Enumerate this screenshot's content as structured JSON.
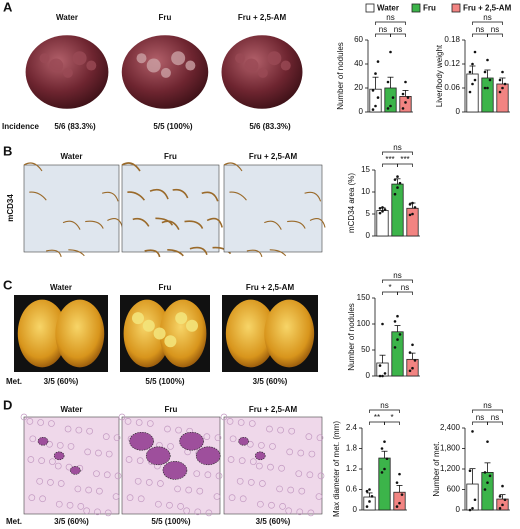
{
  "legend": [
    {
      "name": "Water",
      "color": "#ffffff"
    },
    {
      "name": "Fru",
      "color": "#3cb44a"
    },
    {
      "name": "Fru + 2,5-AM",
      "color": "#f28482"
    }
  ],
  "panels": [
    {
      "letter": "A",
      "labels": [
        "Water",
        "Fru",
        "Fru + 2,5-AM"
      ],
      "row_label": "Incidence",
      "captions": [
        "5/6 (83.3%)",
        "5/5 (100%)",
        "5/6 (83.3%)"
      ]
    },
    {
      "letter": "B",
      "labels": [
        "Water",
        "Fru",
        "Fru + 2,5-AM"
      ],
      "row_label": "mCD34"
    },
    {
      "letter": "C",
      "labels": [
        "Water",
        "Fru",
        "Fru + 2,5-AM"
      ],
      "row_label": "Met.",
      "captions": [
        "3/5 (60%)",
        "5/5 (100%)",
        "3/5 (60%)"
      ]
    },
    {
      "letter": "D",
      "labels": [
        "Water",
        "Fru",
        "Fru + 2,5-AM"
      ],
      "row_label": "Met.",
      "captions": [
        "3/5 (60%)",
        "5/5 (100%)",
        "3/5 (60%)"
      ]
    }
  ],
  "chart_data": [
    {
      "type": "bar",
      "ylabel": "Number of nodules",
      "values": [
        19,
        20,
        13
      ],
      "errors": [
        10,
        9,
        5
      ],
      "points": [
        [
          2,
          5,
          12,
          18,
          32,
          42
        ],
        [
          3,
          5,
          12,
          25,
          50
        ],
        [
          3,
          8,
          12,
          15,
          25
        ]
      ],
      "ylim": [
        0,
        60
      ],
      "yticks": [
        0,
        20,
        40,
        60
      ],
      "brackets": [
        {
          "groups": [
            "Water",
            "Fru"
          ],
          "label": "ns"
        },
        {
          "groups": [
            "Fru",
            "Fru + 2,5-AM"
          ],
          "label": "ns"
        },
        {
          "groups": [
            "Water",
            "Fru + 2,5-AM"
          ],
          "label": "ns"
        }
      ]
    },
    {
      "type": "bar",
      "ylabel": "Liver/body weight",
      "values": [
        0.095,
        0.085,
        0.07
      ],
      "errors": [
        0.02,
        0.02,
        0.015
      ],
      "points": [
        [
          0.05,
          0.07,
          0.08,
          0.1,
          0.12,
          0.15
        ],
        [
          0.06,
          0.06,
          0.08,
          0.1,
          0.13
        ],
        [
          0.05,
          0.06,
          0.07,
          0.08,
          0.1
        ]
      ],
      "ylim": [
        0,
        0.18
      ],
      "yticks": [
        0,
        0.06,
        0.12,
        0.18
      ],
      "brackets": [
        {
          "groups": [
            "Water",
            "Fru"
          ],
          "label": "ns"
        },
        {
          "groups": [
            "Fru",
            "Fru + 2,5-AM"
          ],
          "label": "ns"
        },
        {
          "groups": [
            "Water",
            "Fru + 2,5-AM"
          ],
          "label": "ns"
        }
      ]
    },
    {
      "type": "bar",
      "ylabel": "mCD34 area (%)",
      "values": [
        5.8,
        11.8,
        6.3
      ],
      "errors": [
        0.6,
        1.2,
        1.2
      ],
      "points": [
        [
          5.2,
          5.6,
          6,
          6.3,
          6.5
        ],
        [
          9.5,
          11,
          12,
          12.8,
          13.5
        ],
        [
          4.8,
          5,
          6.5,
          7.2,
          7.5
        ]
      ],
      "ylim": [
        0,
        15
      ],
      "yticks": [
        0,
        5,
        10,
        15
      ],
      "brackets": [
        {
          "groups": [
            "Water",
            "Fru"
          ],
          "label": "***"
        },
        {
          "groups": [
            "Fru",
            "Fru + 2,5-AM"
          ],
          "label": "***"
        },
        {
          "groups": [
            "Water",
            "Fru + 2,5-AM"
          ],
          "label": "ns"
        }
      ]
    },
    {
      "type": "bar",
      "ylabel": "Number of  nodules",
      "values": [
        25,
        85,
        32
      ],
      "errors": [
        15,
        12,
        12
      ],
      "points": [
        [
          0,
          0,
          5,
          20,
          100
        ],
        [
          55,
          70,
          80,
          105,
          115
        ],
        [
          10,
          15,
          30,
          45,
          60
        ]
      ],
      "ylim": [
        0,
        150
      ],
      "yticks": [
        0,
        50,
        100,
        150
      ],
      "brackets": [
        {
          "groups": [
            "Water",
            "Fru"
          ],
          "label": "*"
        },
        {
          "groups": [
            "Fru",
            "Fru + 2,5-AM"
          ],
          "label": "ns"
        },
        {
          "groups": [
            "Water",
            "Fru + 2,5-AM"
          ],
          "label": "ns"
        }
      ]
    },
    {
      "type": "bar",
      "ylabel": "Max diameter of met. (mm)",
      "values": [
        0.38,
        1.52,
        0.52
      ],
      "errors": [
        0.12,
        0.2,
        0.2
      ],
      "points": [
        [
          0.1,
          0.25,
          0.4,
          0.55,
          0.6
        ],
        [
          1.1,
          1.2,
          1.5,
          1.8,
          2.0
        ],
        [
          0.1,
          0.2,
          0.45,
          0.8,
          1.05
        ]
      ],
      "ylim": [
        0,
        2.4
      ],
      "yticks": [
        0,
        0.6,
        1.2,
        1.8,
        2.4
      ],
      "brackets": [
        {
          "groups": [
            "Water",
            "Fru"
          ],
          "label": "**"
        },
        {
          "groups": [
            "Fru",
            "Fru + 2,5-AM"
          ],
          "label": "*"
        },
        {
          "groups": [
            "Water",
            "Fru + 2,5-AM"
          ],
          "label": "ns"
        }
      ]
    },
    {
      "type": "bar",
      "ylabel": "Number of met.",
      "values": [
        760,
        1100,
        320
      ],
      "errors": [
        450,
        280,
        130
      ],
      "points": [
        [
          0,
          50,
          300,
          1150,
          2300
        ],
        [
          600,
          800,
          1000,
          1100,
          2000
        ],
        [
          50,
          150,
          300,
          400,
          700
        ]
      ],
      "ylim": [
        0,
        2400
      ],
      "yticks": [
        0,
        600,
        {
          "value": 1200,
          "label": "1,200"
        },
        {
          "value": 1800,
          "label": "1,800"
        },
        {
          "value": 2400,
          "label": "2,400"
        }
      ],
      "brackets": [
        {
          "groups": [
            "Water",
            "Fru"
          ],
          "label": "ns"
        },
        {
          "groups": [
            "Fru",
            "Fru + 2,5-AM"
          ],
          "label": "ns"
        },
        {
          "groups": [
            "Water",
            "Fru + 2,5-AM"
          ],
          "label": "ns"
        }
      ]
    }
  ]
}
